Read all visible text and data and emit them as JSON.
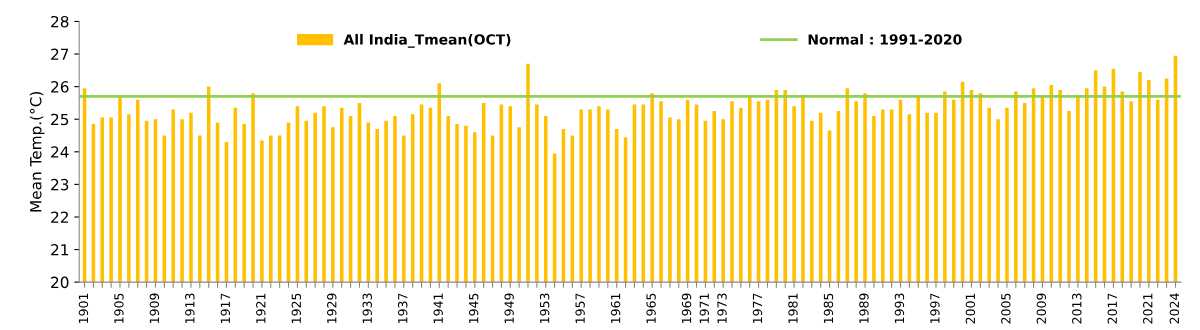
{
  "chart_data": {
    "type": "bar",
    "ylabel": "Mean Temp.(°C)",
    "categories": [
      "1901",
      null,
      null,
      null,
      "1905",
      null,
      null,
      null,
      "1909",
      null,
      null,
      null,
      "1913",
      null,
      null,
      null,
      "1917",
      null,
      null,
      null,
      "1921",
      null,
      null,
      null,
      "1925",
      null,
      null,
      null,
      "1929",
      null,
      null,
      null,
      "1933",
      null,
      null,
      null,
      "1937",
      null,
      null,
      null,
      "1941",
      null,
      null,
      null,
      "1945",
      null,
      null,
      null,
      "1949",
      null,
      null,
      null,
      "1953",
      null,
      null,
      null,
      "1957",
      null,
      null,
      null,
      "1961",
      null,
      null,
      null,
      "1965",
      null,
      null,
      null,
      "1969",
      null,
      "1971",
      null,
      "1973",
      null,
      null,
      null,
      "1977",
      null,
      null,
      null,
      "1981",
      null,
      null,
      null,
      "1985",
      null,
      null,
      null,
      "1989",
      null,
      null,
      null,
      "1993",
      null,
      null,
      null,
      "1997",
      null,
      null,
      null,
      "2001",
      null,
      null,
      null,
      "2005",
      null,
      null,
      null,
      "2009",
      null,
      null,
      null,
      "2013",
      null,
      null,
      null,
      "2017",
      null,
      null,
      null,
      "2021",
      null,
      null,
      "2024"
    ],
    "series": [
      {
        "name": "All India_Tmean(OCT)",
        "color": "#ffc000",
        "values": [
          25.95,
          24.85,
          25.05,
          25.05,
          25.7,
          25.15,
          25.6,
          24.95,
          25.0,
          24.5,
          25.3,
          25.0,
          25.2,
          24.5,
          26.0,
          24.9,
          24.3,
          25.35,
          24.85,
          25.8,
          24.35,
          24.5,
          24.5,
          24.9,
          25.4,
          24.95,
          25.2,
          25.4,
          24.75,
          25.35,
          25.1,
          25.5,
          24.9,
          24.7,
          24.95,
          25.1,
          24.5,
          25.15,
          25.45,
          25.35,
          26.1,
          25.1,
          24.85,
          24.8,
          24.6,
          25.5,
          24.5,
          25.45,
          25.4,
          24.75,
          26.7,
          25.45,
          25.1,
          23.95,
          24.7,
          24.5,
          25.3,
          25.3,
          25.4,
          25.3,
          24.7,
          24.45,
          25.45,
          25.45,
          25.8,
          25.55,
          25.05,
          25.0,
          25.6,
          25.45,
          24.95,
          25.25,
          25.0,
          25.55,
          25.35,
          25.7,
          25.55,
          25.6,
          25.9,
          25.9,
          25.4,
          25.75,
          24.95,
          25.2,
          24.65,
          25.25,
          25.95,
          25.55,
          25.8,
          25.1,
          25.3,
          25.3,
          25.6,
          25.15,
          25.7,
          25.2,
          25.2,
          25.85,
          25.6,
          26.15,
          25.9,
          25.8,
          25.35,
          25.0,
          25.35,
          25.85,
          25.5,
          25.95,
          25.7,
          26.05,
          25.9,
          25.25,
          25.7,
          25.95,
          26.5,
          26.0,
          26.55,
          25.85,
          25.55,
          26.45,
          26.2,
          25.6,
          26.25,
          26.95
        ]
      }
    ],
    "ref_lines": [
      {
        "axis": "y",
        "value": 25.7,
        "color": "#92d050",
        "line_style": "solid"
      }
    ],
    "annotations": [
      "Normal : 1991-2020"
    ],
    "ylim": [
      20,
      28
    ],
    "yticks": [
      20,
      21,
      22,
      23,
      24,
      25,
      26,
      27,
      28
    ],
    "grid": false,
    "legend": "top"
  }
}
